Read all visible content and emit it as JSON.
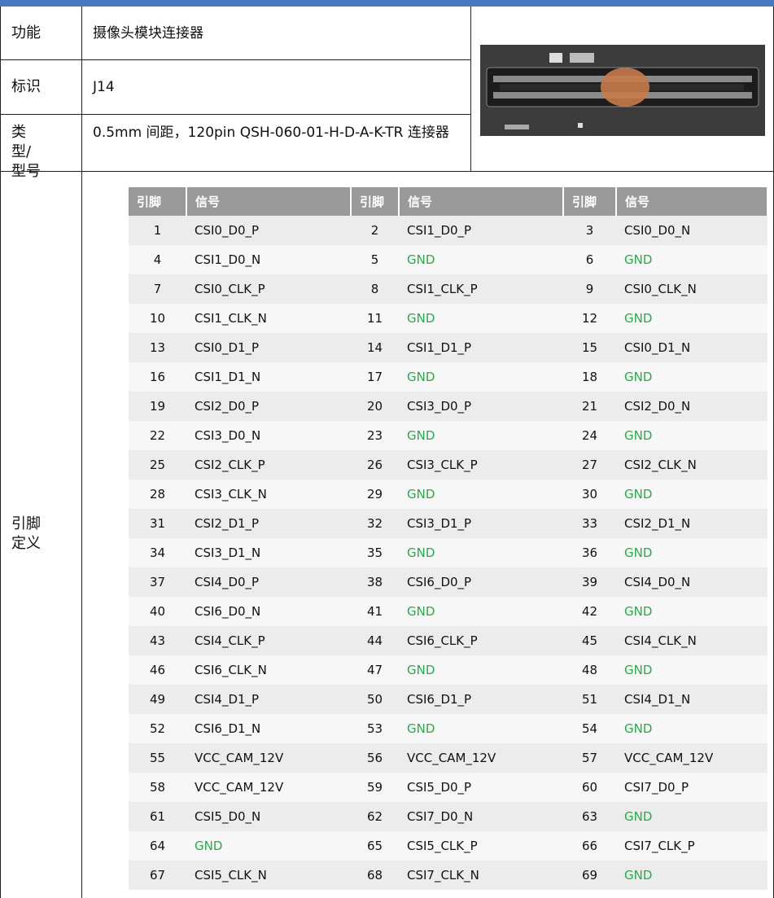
{
  "rows": [
    {
      "label": "功能",
      "value": "摄像头模块连接器"
    },
    {
      "label": "标识",
      "value": "J14"
    },
    {
      "label": "类型/型号",
      "value": "0.5mm 间距，120pin QSH-060-01-H-D-A-K-TR 连接器"
    }
  ],
  "pin_definition": {
    "label": "引脚定义",
    "header": [
      "引脚",
      "信号",
      "引脚",
      "信号",
      "引脚",
      "信号"
    ],
    "rows": [
      [
        {
          "pin": 1,
          "signal": "CSI0_D0_P"
        },
        {
          "pin": 2,
          "signal": "CSI1_D0_P"
        },
        {
          "pin": 3,
          "signal": "CSI0_D0_N"
        }
      ],
      [
        {
          "pin": 4,
          "signal": "CSI1_D0_N"
        },
        {
          "pin": 5,
          "signal": "GND",
          "color": "#2aa84a"
        },
        {
          "pin": 6,
          "signal": "GND",
          "color": "#2aa84a"
        }
      ],
      [
        {
          "pin": 7,
          "signal": "CSI0_CLK_P"
        },
        {
          "pin": 8,
          "signal": "CSI1_CLK_P"
        },
        {
          "pin": 9,
          "signal": "CSI0_CLK_N"
        }
      ],
      [
        {
          "pin": 10,
          "signal": "CSI1_CLK_N"
        },
        {
          "pin": 11,
          "signal": "GND",
          "color": "#2aa84a"
        },
        {
          "pin": 12,
          "signal": "GND",
          "color": "#2aa84a"
        }
      ],
      [
        {
          "pin": 13,
          "signal": "CSI0_D1_P"
        },
        {
          "pin": 14,
          "signal": "CSI1_D1_P"
        },
        {
          "pin": 15,
          "signal": "CSI0_D1_N"
        }
      ],
      [
        {
          "pin": 16,
          "signal": "CSI1_D1_N"
        },
        {
          "pin": 17,
          "signal": "GND",
          "color": "#2aa84a"
        },
        {
          "pin": 18,
          "signal": "GND",
          "color": "#2aa84a"
        }
      ],
      [
        {
          "pin": 19,
          "signal": "CSI2_D0_P"
        },
        {
          "pin": 20,
          "signal": "CSI3_D0_P"
        },
        {
          "pin": 21,
          "signal": "CSI2_D0_N"
        }
      ],
      [
        {
          "pin": 22,
          "signal": "CSI3_D0_N"
        },
        {
          "pin": 23,
          "signal": "GND",
          "color": "#2aa84a"
        },
        {
          "pin": 24,
          "signal": "GND",
          "color": "#2aa84a"
        }
      ],
      [
        {
          "pin": 25,
          "signal": "CSI2_CLK_P"
        },
        {
          "pin": 26,
          "signal": "CSI3_CLK_P"
        },
        {
          "pin": 27,
          "signal": "CSI2_CLK_N"
        }
      ],
      [
        {
          "pin": 28,
          "signal": "CSI3_CLK_N"
        },
        {
          "pin": 29,
          "signal": "GND",
          "color": "#2aa84a"
        },
        {
          "pin": 30,
          "signal": "GND",
          "color": "#2aa84a"
        }
      ],
      [
        {
          "pin": 31,
          "signal": "CSI2_D1_P"
        },
        {
          "pin": 32,
          "signal": "CSI3_D1_P"
        },
        {
          "pin": 33,
          "signal": "CSI2_D1_N"
        }
      ],
      [
        {
          "pin": 34,
          "signal": "CSI3_D1_N"
        },
        {
          "pin": 35,
          "signal": "GND",
          "color": "#2aa84a"
        },
        {
          "pin": 36,
          "signal": "GND",
          "color": "#2aa84a"
        }
      ],
      [
        {
          "pin": 37,
          "signal": "CSI4_D0_P"
        },
        {
          "pin": 38,
          "signal": "CSI6_D0_P"
        },
        {
          "pin": 39,
          "signal": "CSI4_D0_N"
        }
      ],
      [
        {
          "pin": 40,
          "signal": "CSI6_D0_N"
        },
        {
          "pin": 41,
          "signal": "GND",
          "color": "#2aa84a"
        },
        {
          "pin": 42,
          "signal": "GND",
          "color": "#2aa84a"
        }
      ],
      [
        {
          "pin": 43,
          "signal": "CSI4_CLK_P"
        },
        {
          "pin": 44,
          "signal": "CSI6_CLK_P"
        },
        {
          "pin": 45,
          "signal": "CSI4_CLK_N"
        }
      ],
      [
        {
          "pin": 46,
          "signal": "CSI6_CLK_N"
        },
        {
          "pin": 47,
          "signal": "GND",
          "color": "#2aa84a"
        },
        {
          "pin": 48,
          "signal": "GND",
          "color": "#2aa84a"
        }
      ],
      [
        {
          "pin": 49,
          "signal": "CSI4_D1_P"
        },
        {
          "pin": 50,
          "signal": "CSI6_D1_P"
        },
        {
          "pin": 51,
          "signal": "CSI4_D1_N"
        }
      ],
      [
        {
          "pin": 52,
          "signal": "CSI6_D1_N"
        },
        {
          "pin": 53,
          "signal": "GND",
          "color": "#2aa84a"
        },
        {
          "pin": 54,
          "signal": "GND",
          "color": "#2aa84a"
        }
      ],
      [
        {
          "pin": 55,
          "signal": "VCC_CAM_12V"
        },
        {
          "pin": 56,
          "signal": "VCC_CAM_12V"
        },
        {
          "pin": 57,
          "signal": "VCC_CAM_12V"
        }
      ],
      [
        {
          "pin": 58,
          "signal": "VCC_CAM_12V"
        },
        {
          "pin": 59,
          "signal": "CSI5_D0_P"
        },
        {
          "pin": 60,
          "signal": "CSI7_D0_P"
        }
      ],
      [
        {
          "pin": 61,
          "signal": "CSI5_D0_N"
        },
        {
          "pin": 62,
          "signal": "CSI7_D0_N"
        },
        {
          "pin": 63,
          "signal": "GND",
          "color": "#2aa84a"
        }
      ],
      [
        {
          "pin": 64,
          "signal": "GND",
          "color": "#2aa84a"
        },
        {
          "pin": 65,
          "signal": "CSI5_CLK_P"
        },
        {
          "pin": 66,
          "signal": "CSI7_CLK_P"
        }
      ],
      [
        {
          "pin": 67,
          "signal": "CSI5_CLK_N"
        },
        {
          "pin": 68,
          "signal": "CSI7_CLK_N"
        },
        {
          "pin": 69,
          "signal": "GND",
          "color": "#2aa84a"
        }
      ]
    ]
  }
}
